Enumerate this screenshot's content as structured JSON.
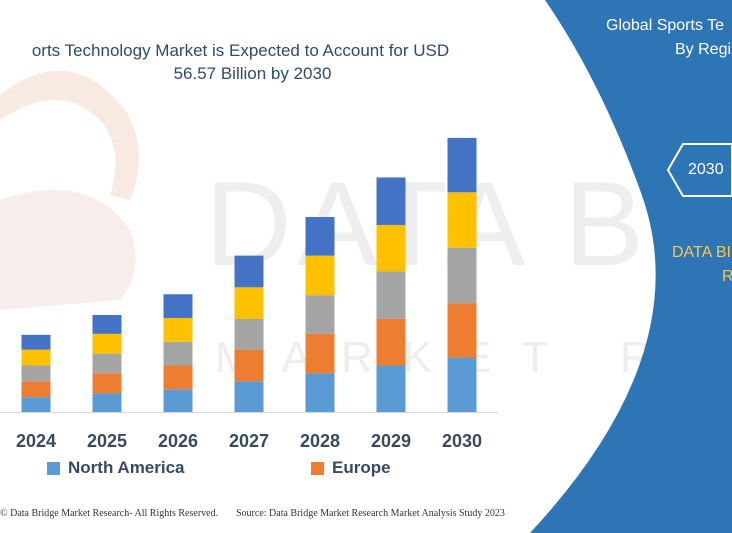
{
  "header": {
    "title_line1": "orts Technology Market  is Expected to Account for USD",
    "title_line2": "56.57 Billion by 2030"
  },
  "chart_data": {
    "type": "bar",
    "stacked": true,
    "categories": [
      "2024",
      "2025",
      "2026",
      "2027",
      "2028",
      "2029",
      "2030"
    ],
    "series": [
      {
        "name": "North America",
        "color": "#5b9bd5",
        "values": [
          15,
          19,
          23,
          31,
          39,
          47,
          55
        ]
      },
      {
        "name": "Europe",
        "color": "#ed7d31",
        "values": [
          16,
          20,
          24,
          32,
          40,
          47,
          55
        ]
      },
      {
        "name": "",
        "color": "#a5a5a5",
        "values": [
          16,
          20,
          24,
          31,
          39,
          48,
          56
        ]
      },
      {
        "name": "",
        "color": "#ffc000",
        "values": [
          16,
          20,
          24,
          32,
          40,
          47,
          56
        ]
      },
      {
        "name": "",
        "color": "#4472c4",
        "values": [
          15,
          19,
          24,
          32,
          39,
          48,
          55
        ]
      }
    ],
    "ylim": [
      0,
      290
    ],
    "grid": false,
    "legend_position": "bottom"
  },
  "footer": {
    "left": "© Data Bridge Market Research-  All Rights Reserved.",
    "right": "Source: Data Bridge Market Research  Market Analysis Study 2023"
  },
  "side_panel": {
    "title_line1": "Global Sports Te",
    "title_line2": "By Regi",
    "year_badge": "2030",
    "brand_line1": "DATA BI",
    "brand_line2": "R",
    "colors": {
      "panel": "#2e75b6",
      "text": "#ffffff",
      "accent": "#f7c84a"
    }
  },
  "watermark": {
    "line1": "DATA BRIDGE",
    "line2": "MARKET RESEARCH"
  }
}
